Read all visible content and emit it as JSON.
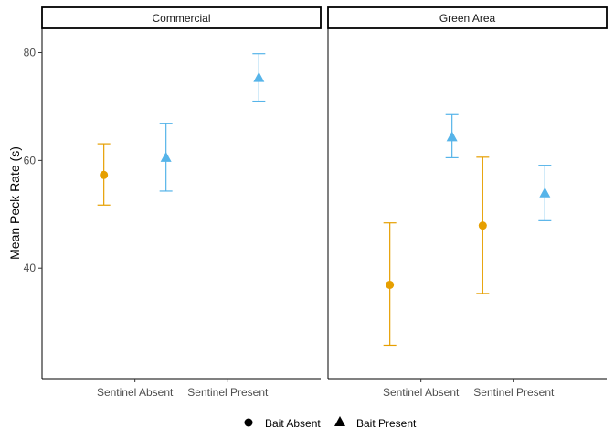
{
  "colors": {
    "bait_absent": "#E69F00",
    "bait_present": "#56B4E9",
    "axis": "#000000",
    "tick_text": "#4d4d4d"
  },
  "chart_data": {
    "type": "scatter",
    "subtype": "point with error bars, faceted",
    "ylabel": "Mean Peck Rate (s)",
    "xlabel": "",
    "ylim": [
      19.5,
      84.5
    ],
    "yticks": [
      40,
      60,
      80
    ],
    "categories": [
      "Sentinel Absent",
      "Sentinel Present"
    ],
    "grid": false,
    "legend_position": "bottom",
    "legend": [
      {
        "label": "Bait Absent",
        "shape": "circle"
      },
      {
        "label": "Bait Present",
        "shape": "triangle"
      }
    ],
    "facets": [
      {
        "label": "Commercial",
        "series": [
          {
            "name": "Bait Absent",
            "shape": "circle",
            "points": [
              {
                "x": "Sentinel Absent",
                "y": 57.3,
                "ymin": 51.7,
                "ymax": 63.1
              }
            ]
          },
          {
            "name": "Bait Present",
            "shape": "triangle",
            "points": [
              {
                "x": "Sentinel Absent",
                "y": 60.6,
                "ymin": 54.3,
                "ymax": 66.8
              },
              {
                "x": "Sentinel Present",
                "y": 75.4,
                "ymin": 71.0,
                "ymax": 79.8
              }
            ]
          }
        ]
      },
      {
        "label": "Green Area",
        "series": [
          {
            "name": "Bait Absent",
            "shape": "circle",
            "points": [
              {
                "x": "Sentinel Absent",
                "y": 36.9,
                "ymin": 25.7,
                "ymax": 48.4
              },
              {
                "x": "Sentinel Present",
                "y": 47.9,
                "ymin": 35.3,
                "ymax": 60.6
              }
            ]
          },
          {
            "name": "Bait Present",
            "shape": "triangle",
            "points": [
              {
                "x": "Sentinel Absent",
                "y": 64.4,
                "ymin": 60.5,
                "ymax": 68.5
              },
              {
                "x": "Sentinel Present",
                "y": 54.0,
                "ymin": 48.8,
                "ymax": 59.1
              }
            ]
          }
        ]
      }
    ]
  }
}
